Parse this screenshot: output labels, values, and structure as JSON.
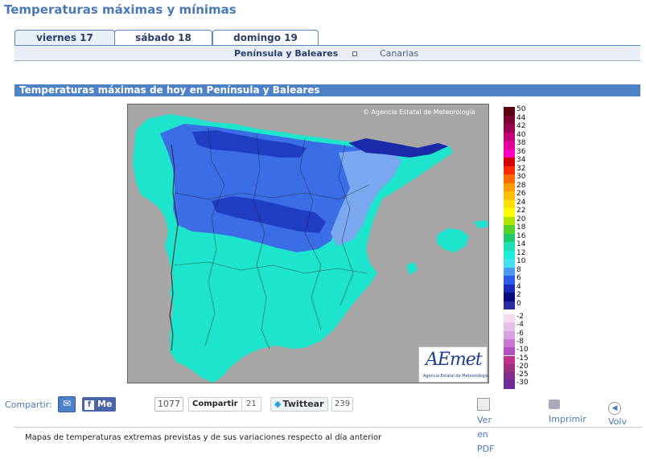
{
  "page_title": "Temperaturas máximas y mínimas",
  "tabs": [
    {
      "label": "viernes 17",
      "active": true
    },
    {
      "label": "sábado 18",
      "active": false
    },
    {
      "label": "domingo 19",
      "active": false
    }
  ],
  "subnav": {
    "peninsula": "Península y Baleares",
    "canarias": "Canarias"
  },
  "section_title": "Temperaturas máximas de hoy en Península y Baleares",
  "map": {
    "copyright": "Agencia Estatal de Meteorología",
    "logo": "AEmet",
    "logo_sub": "Agencia Estatal de Meteorología",
    "sea_color": "#a6a6a6"
  },
  "legend": [
    {
      "label": "50",
      "color": "#5a0010"
    },
    {
      "label": "44",
      "color": "#7a0030"
    },
    {
      "label": "42",
      "color": "#9a0050"
    },
    {
      "label": "40",
      "color": "#c20078"
    },
    {
      "label": "38",
      "color": "#e0009a"
    },
    {
      "label": "36",
      "color": "#ff00c0"
    },
    {
      "label": "34",
      "color": "#d40000"
    },
    {
      "label": "32",
      "color": "#ff2a00"
    },
    {
      "label": "30",
      "color": "#ff6a00"
    },
    {
      "label": "28",
      "color": "#ff9a00"
    },
    {
      "label": "26",
      "color": "#ffc000"
    },
    {
      "label": "24",
      "color": "#ffe000"
    },
    {
      "label": "22",
      "color": "#ffff00"
    },
    {
      "label": "20",
      "color": "#b0e400"
    },
    {
      "label": "18",
      "color": "#52d22a"
    },
    {
      "label": "16",
      "color": "#1ec86e"
    },
    {
      "label": "14",
      "color": "#1ee0b4"
    },
    {
      "label": "12",
      "color": "#1ef0d8"
    },
    {
      "label": "10",
      "color": "#40e0f0"
    },
    {
      "label": "8",
      "color": "#4a9af0"
    },
    {
      "label": "6",
      "color": "#2a5ae6"
    },
    {
      "label": "4",
      "color": "#1a2ab8"
    },
    {
      "label": "2",
      "color": "#0a0a80"
    },
    {
      "label": "0",
      "color": "#2a2aa0"
    },
    {
      "label": "-2",
      "color": "#f2dcf0"
    },
    {
      "label": "-4",
      "color": "#e6c0e6"
    },
    {
      "label": "-6",
      "color": "#d8a0dc"
    },
    {
      "label": "-8",
      "color": "#c878d2"
    },
    {
      "label": "-10",
      "color": "#b450c4"
    },
    {
      "label": "-15",
      "color": "#c0308c"
    },
    {
      "label": "-20",
      "color": "#a0307c"
    },
    {
      "label": "-25",
      "color": "#802e8c"
    },
    {
      "label": "-30",
      "color": "#6a2c9c"
    }
  ],
  "share": {
    "compartir_label": "Compartir:",
    "like_label": "Me gusta",
    "like_count": "1077",
    "fb_share_label": "Compartir",
    "fb_share_count": "21",
    "tweet_label": "Twittear",
    "tweet_count": "239",
    "pdf_label": "Ver en PDF",
    "print_label": "Imprimir",
    "back_label": "Volv"
  },
  "footer_text": "Mapas de temperaturas extremas previstas y de sus variaciones respecto al día anterior"
}
